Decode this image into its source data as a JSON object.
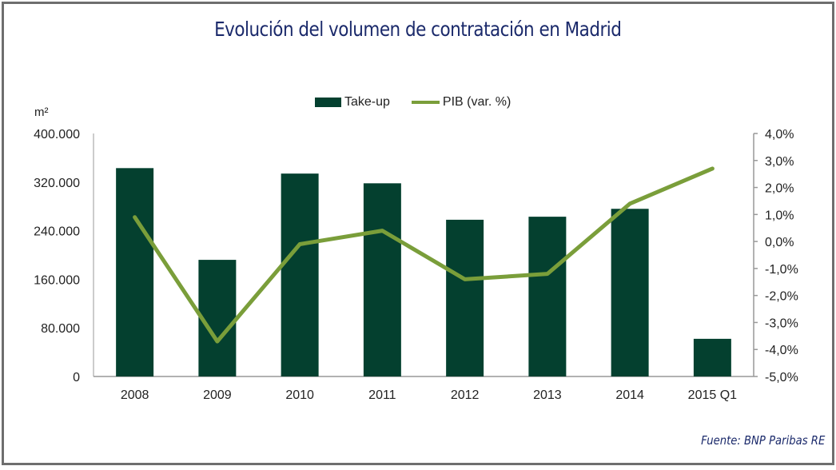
{
  "title": "Evolución del volumen de contratación en Madrid",
  "unit_label": "m²",
  "source": "Fuente: BNP Paribas RE",
  "colors": {
    "bar": "#04402f",
    "line": "#7a9e3a",
    "title": "#1b2a6b",
    "axis": "#999999"
  },
  "legend": [
    {
      "label": "Take-up",
      "type": "bar"
    },
    {
      "label": "PIB (var. %)",
      "type": "line"
    }
  ],
  "chart_data": {
    "type": "bar",
    "title": "Evolución del volumen de contratación en Madrid",
    "xlabel": "",
    "ylabel": "m²",
    "y2label": "",
    "categories": [
      "2008",
      "2009",
      "2010",
      "2011",
      "2012",
      "2013",
      "2014",
      "2015 Q1"
    ],
    "series": [
      {
        "name": "Take-up",
        "type": "bar",
        "axis": "left",
        "values": [
          343000,
          192000,
          334000,
          318000,
          258000,
          263000,
          276000,
          62000
        ]
      },
      {
        "name": "PIB (var. %)",
        "type": "line",
        "axis": "right",
        "values": [
          0.9,
          -3.7,
          -0.1,
          0.4,
          -1.4,
          -1.2,
          1.4,
          2.7
        ]
      }
    ],
    "ylim": [
      0,
      400000
    ],
    "y2lim": [
      -5.0,
      4.0
    ],
    "yticks": [
      "0",
      "80.000",
      "160.000",
      "240.000",
      "320.000",
      "400.000"
    ],
    "y2ticks": [
      "-5,0%",
      "-4,0%",
      "-3,0%",
      "-2,0%",
      "-1,0%",
      "0,0%",
      "1,0%",
      "2,0%",
      "3,0%",
      "4,0%"
    ],
    "grid": false,
    "legend_position": "top-center"
  }
}
